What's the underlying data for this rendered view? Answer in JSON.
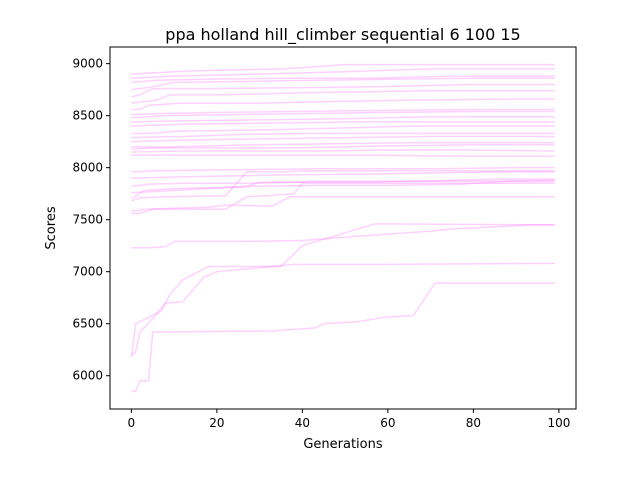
{
  "chart_data": {
    "type": "line",
    "title": "ppa holland hill_climber sequential 6 100 15",
    "xlabel": "Generations",
    "ylabel": "Scores",
    "xlim": [
      -5,
      104
    ],
    "ylim": [
      5680,
      9160
    ],
    "xticks": [
      0,
      20,
      40,
      60,
      80,
      100
    ],
    "yticks": [
      6000,
      6500,
      7000,
      7500,
      8000,
      8500,
      9000
    ],
    "grid": false,
    "legend": "none",
    "color": "#ff66ff",
    "opacity": 0.3,
    "series": [
      {
        "points": [
          [
            0,
            5850
          ],
          [
            1,
            5850
          ],
          [
            2,
            5950
          ],
          [
            4,
            5950
          ],
          [
            5,
            6420
          ],
          [
            33,
            6430
          ],
          [
            43,
            6460
          ],
          [
            45,
            6500
          ],
          [
            53,
            6520
          ],
          [
            59,
            6560
          ],
          [
            66,
            6580
          ],
          [
            71,
            6890
          ],
          [
            99,
            6890
          ]
        ]
      },
      {
        "points": [
          [
            0,
            6200
          ],
          [
            1,
            6230
          ],
          [
            2,
            6420
          ],
          [
            5,
            6550
          ],
          [
            8,
            6700
          ],
          [
            12,
            6710
          ],
          [
            17,
            6950
          ],
          [
            20,
            7000
          ],
          [
            38,
            7070
          ],
          [
            55,
            7070
          ],
          [
            99,
            7080
          ]
        ]
      },
      {
        "points": [
          [
            0,
            6180
          ],
          [
            1,
            6500
          ],
          [
            2,
            6520
          ],
          [
            7,
            6620
          ],
          [
            9,
            6780
          ],
          [
            12,
            6920
          ],
          [
            18,
            7050
          ],
          [
            35,
            7050
          ],
          [
            40,
            7250
          ],
          [
            57,
            7460
          ],
          [
            99,
            7450
          ]
        ]
      },
      {
        "points": [
          [
            0,
            7230
          ],
          [
            4,
            7230
          ],
          [
            8,
            7240
          ],
          [
            10,
            7290
          ],
          [
            26,
            7290
          ],
          [
            40,
            7300
          ],
          [
            56,
            7350
          ],
          [
            70,
            7390
          ],
          [
            75,
            7410
          ],
          [
            94,
            7450
          ],
          [
            99,
            7450
          ]
        ]
      },
      {
        "points": [
          [
            0,
            7560
          ],
          [
            2,
            7560
          ],
          [
            5,
            7600
          ],
          [
            22,
            7600
          ],
          [
            27,
            7720
          ],
          [
            35,
            7740
          ],
          [
            38,
            7750
          ],
          [
            40,
            7850
          ],
          [
            58,
            7850
          ],
          [
            99,
            7850
          ]
        ]
      },
      {
        "points": [
          [
            0,
            7580
          ],
          [
            3,
            7600
          ],
          [
            10,
            7610
          ],
          [
            18,
            7620
          ],
          [
            22,
            7640
          ],
          [
            33,
            7630
          ],
          [
            37,
            7720
          ],
          [
            42,
            7720
          ],
          [
            56,
            7720
          ],
          [
            62,
            7720
          ],
          [
            99,
            7720
          ]
        ]
      },
      {
        "points": [
          [
            0,
            7680
          ],
          [
            2,
            7710
          ],
          [
            8,
            7720
          ],
          [
            22,
            7730
          ],
          [
            27,
            7960
          ],
          [
            36,
            7960
          ],
          [
            40,
            7970
          ],
          [
            60,
            7970
          ],
          [
            70,
            7970
          ],
          [
            99,
            7970
          ]
        ]
      },
      {
        "points": [
          [
            0,
            7700
          ],
          [
            3,
            7780
          ],
          [
            10,
            7800
          ],
          [
            26,
            7810
          ],
          [
            30,
            7860
          ],
          [
            39,
            7860
          ],
          [
            42,
            7870
          ],
          [
            55,
            7870
          ],
          [
            85,
            7870
          ],
          [
            99,
            7880
          ]
        ]
      },
      {
        "points": [
          [
            0,
            7760
          ],
          [
            5,
            7770
          ],
          [
            14,
            7790
          ],
          [
            26,
            7820
          ],
          [
            44,
            7830
          ],
          [
            60,
            7830
          ],
          [
            77,
            7840
          ],
          [
            88,
            7870
          ],
          [
            99,
            7870
          ]
        ]
      },
      {
        "points": [
          [
            0,
            7820
          ],
          [
            4,
            7840
          ],
          [
            12,
            7850
          ],
          [
            28,
            7850
          ],
          [
            40,
            7860
          ],
          [
            56,
            7860
          ],
          [
            86,
            7890
          ],
          [
            99,
            7890
          ]
        ]
      },
      {
        "points": [
          [
            0,
            7900
          ],
          [
            10,
            7910
          ],
          [
            35,
            7930
          ],
          [
            58,
            7940
          ],
          [
            70,
            7950
          ],
          [
            88,
            7960
          ],
          [
            99,
            7960
          ]
        ]
      },
      {
        "points": [
          [
            0,
            7960
          ],
          [
            6,
            7970
          ],
          [
            24,
            7980
          ],
          [
            46,
            7990
          ],
          [
            72,
            7990
          ],
          [
            90,
            8000
          ],
          [
            99,
            8000
          ]
        ]
      },
      {
        "points": [
          [
            0,
            8120
          ],
          [
            5,
            8120
          ],
          [
            12,
            8120
          ],
          [
            30,
            8120
          ],
          [
            56,
            8120
          ],
          [
            78,
            8110
          ],
          [
            99,
            8110
          ]
        ]
      },
      {
        "points": [
          [
            0,
            8150
          ],
          [
            12,
            8160
          ],
          [
            30,
            8160
          ],
          [
            45,
            8160
          ],
          [
            62,
            8170
          ],
          [
            78,
            8170
          ],
          [
            99,
            8160
          ]
        ]
      },
      {
        "points": [
          [
            0,
            8180
          ],
          [
            6,
            8190
          ],
          [
            20,
            8190
          ],
          [
            38,
            8190
          ],
          [
            60,
            8210
          ],
          [
            80,
            8220
          ],
          [
            99,
            8220
          ]
        ]
      },
      {
        "points": [
          [
            0,
            8200
          ],
          [
            10,
            8200
          ],
          [
            28,
            8220
          ],
          [
            47,
            8230
          ],
          [
            66,
            8240
          ],
          [
            99,
            8240
          ]
        ]
      },
      {
        "points": [
          [
            0,
            8250
          ],
          [
            8,
            8260
          ],
          [
            18,
            8270
          ],
          [
            36,
            8280
          ],
          [
            52,
            8290
          ],
          [
            70,
            8300
          ],
          [
            99,
            8300
          ]
        ]
      },
      {
        "points": [
          [
            0,
            8290
          ],
          [
            12,
            8300
          ],
          [
            26,
            8320
          ],
          [
            44,
            8330
          ],
          [
            62,
            8330
          ],
          [
            99,
            8330
          ]
        ]
      },
      {
        "points": [
          [
            0,
            8330
          ],
          [
            5,
            8330
          ],
          [
            10,
            8350
          ],
          [
            28,
            8360
          ],
          [
            48,
            8380
          ],
          [
            68,
            8400
          ],
          [
            99,
            8400
          ]
        ]
      },
      {
        "points": [
          [
            0,
            8400
          ],
          [
            14,
            8420
          ],
          [
            34,
            8430
          ],
          [
            54,
            8440
          ],
          [
            74,
            8440
          ],
          [
            99,
            8440
          ]
        ]
      },
      {
        "points": [
          [
            0,
            8440
          ],
          [
            10,
            8450
          ],
          [
            30,
            8460
          ],
          [
            50,
            8470
          ],
          [
            70,
            8490
          ],
          [
            99,
            8490
          ]
        ]
      },
      {
        "points": [
          [
            0,
            8480
          ],
          [
            8,
            8500
          ],
          [
            24,
            8510
          ],
          [
            40,
            8520
          ],
          [
            58,
            8530
          ],
          [
            80,
            8540
          ],
          [
            99,
            8540
          ]
        ]
      },
      {
        "points": [
          [
            0,
            8510
          ],
          [
            6,
            8520
          ],
          [
            18,
            8530
          ],
          [
            38,
            8540
          ],
          [
            56,
            8550
          ],
          [
            84,
            8560
          ],
          [
            99,
            8560
          ]
        ]
      },
      {
        "points": [
          [
            0,
            8560
          ],
          [
            2,
            8560
          ],
          [
            4,
            8600
          ],
          [
            12,
            8620
          ],
          [
            30,
            8620
          ],
          [
            52,
            8640
          ],
          [
            68,
            8650
          ],
          [
            90,
            8660
          ],
          [
            99,
            8660
          ]
        ]
      },
      {
        "points": [
          [
            0,
            8620
          ],
          [
            4,
            8640
          ],
          [
            6,
            8650
          ],
          [
            9,
            8700
          ],
          [
            22,
            8700
          ],
          [
            40,
            8720
          ],
          [
            56,
            8730
          ],
          [
            70,
            8740
          ],
          [
            99,
            8740
          ]
        ]
      },
      {
        "points": [
          [
            0,
            8680
          ],
          [
            2,
            8700
          ],
          [
            5,
            8760
          ],
          [
            20,
            8760
          ],
          [
            40,
            8770
          ],
          [
            60,
            8780
          ],
          [
            80,
            8800
          ],
          [
            99,
            8800
          ]
        ]
      },
      {
        "points": [
          [
            0,
            8750
          ],
          [
            4,
            8770
          ],
          [
            10,
            8820
          ],
          [
            28,
            8830
          ],
          [
            44,
            8840
          ],
          [
            60,
            8850
          ],
          [
            80,
            8860
          ],
          [
            99,
            8860
          ]
        ]
      },
      {
        "points": [
          [
            0,
            8820
          ],
          [
            6,
            8840
          ],
          [
            16,
            8850
          ],
          [
            38,
            8860
          ],
          [
            56,
            8860
          ],
          [
            75,
            8880
          ],
          [
            99,
            8880
          ]
        ]
      },
      {
        "points": [
          [
            0,
            8860
          ],
          [
            10,
            8880
          ],
          [
            30,
            8900
          ],
          [
            48,
            8920
          ],
          [
            70,
            8950
          ],
          [
            99,
            8950
          ]
        ]
      },
      {
        "points": [
          [
            0,
            8900
          ],
          [
            14,
            8930
          ],
          [
            36,
            8950
          ],
          [
            50,
            8990
          ],
          [
            76,
            8990
          ],
          [
            99,
            8990
          ]
        ]
      }
    ]
  }
}
